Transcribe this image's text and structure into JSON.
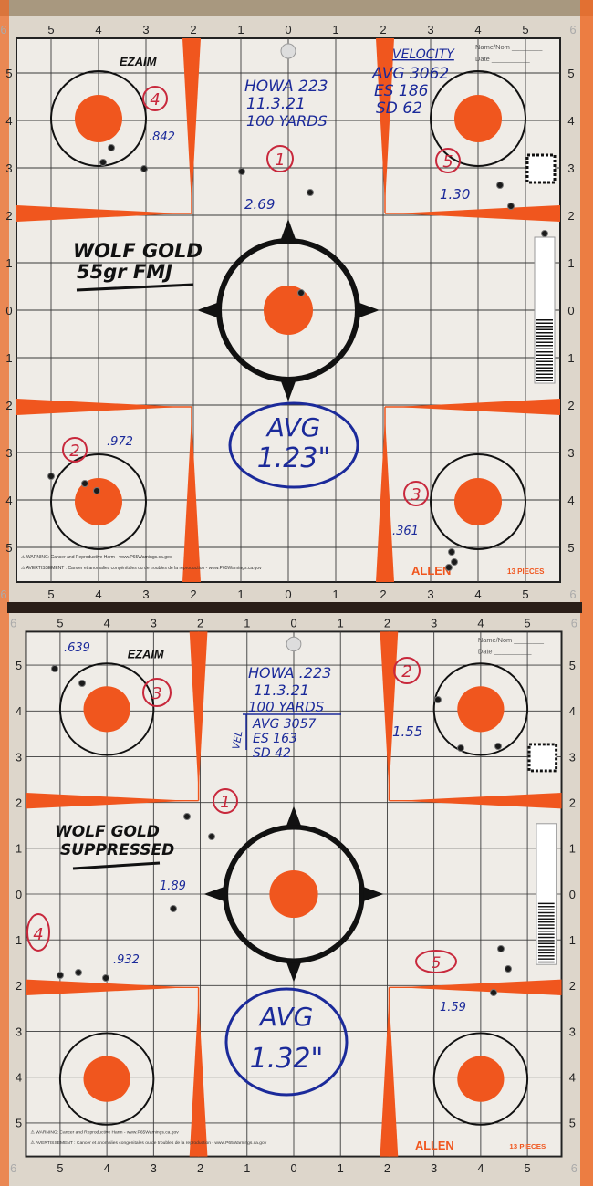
{
  "colors": {
    "target_orange": "#f0561e",
    "grid": "#3a3a3a",
    "paper": "#efece7",
    "ink_blue": "#1b2a9a",
    "ink_red": "#c8283c",
    "ink_black": "#111111"
  },
  "scale_labels": [
    "6",
    "5",
    "4",
    "3",
    "2",
    "1",
    "0",
    "1",
    "2",
    "3",
    "4",
    "5",
    "6"
  ],
  "row_labels_top": [
    "5",
    "4",
    "3",
    "2",
    "1",
    "0",
    "1",
    "2",
    "3",
    "4",
    "5"
  ],
  "targets": [
    {
      "brand_logo": "EZAIM",
      "name_label": "Name/Nom",
      "date_label": "Date",
      "maker": "ALLEN",
      "pieces": "13 PIECES",
      "warning": "WARNING: Cancer and Reproductive Harm - www.P65Warnings.ca.gov",
      "warning_fr": "AVERTISSEMENT : Cancer et anomalies congénitales ou de troubles de la reproduction - www.P65Warnings.ca.gov",
      "notes": {
        "rifle": "HOWA 223",
        "date": "11.3.21",
        "distance": "100 YARDS",
        "velocity_heading": "VELOCITY",
        "avg": "AVG 3062",
        "es": "ES 186",
        "sd": "SD 62",
        "ammo_line1": "WOLF GOLD",
        "ammo_line2": "55gr FMJ",
        "avg_group_line1": "AVG",
        "avg_group_line2": "1.23\""
      },
      "groups": [
        {
          "number": "1",
          "size": "2.69"
        },
        {
          "number": "2",
          "size": ".972"
        },
        {
          "number": "3",
          "size": ".361"
        },
        {
          "number": "4",
          "size": ".842"
        },
        {
          "number": "5",
          "size": "1.30"
        }
      ]
    },
    {
      "brand_logo": "EZAIM",
      "name_label": "Name/Nom",
      "date_label": "Date",
      "maker": "ALLEN",
      "pieces": "13 PIECES",
      "warning": "WARNING: Cancer and Reproductive Harm - www.P65Warnings.ca.gov",
      "warning_fr": "AVERTISSEMENT : Cancer et anomalies congénitales ou de troubles de la reproduction - www.P65Warnings.ca.gov",
      "notes": {
        "rifle": "HOWA .223",
        "date": "11.3.21",
        "distance": "100 YARDS",
        "velocity_heading": "VEL",
        "avg": "AVG 3057",
        "es": "ES 163",
        "sd": "SD 42",
        "ammo_line1": "WOLF GOLD",
        "ammo_line2": "SUPPRESSED",
        "avg_group_line1": "AVG",
        "avg_group_line2": "1.32\""
      },
      "groups": [
        {
          "number": "1",
          "size": "1.89"
        },
        {
          "number": "2",
          "size": "1.55"
        },
        {
          "number": "3",
          "size": ".639"
        },
        {
          "number": "4",
          "size": ".932"
        },
        {
          "number": "5",
          "size": "1.59"
        }
      ]
    }
  ]
}
